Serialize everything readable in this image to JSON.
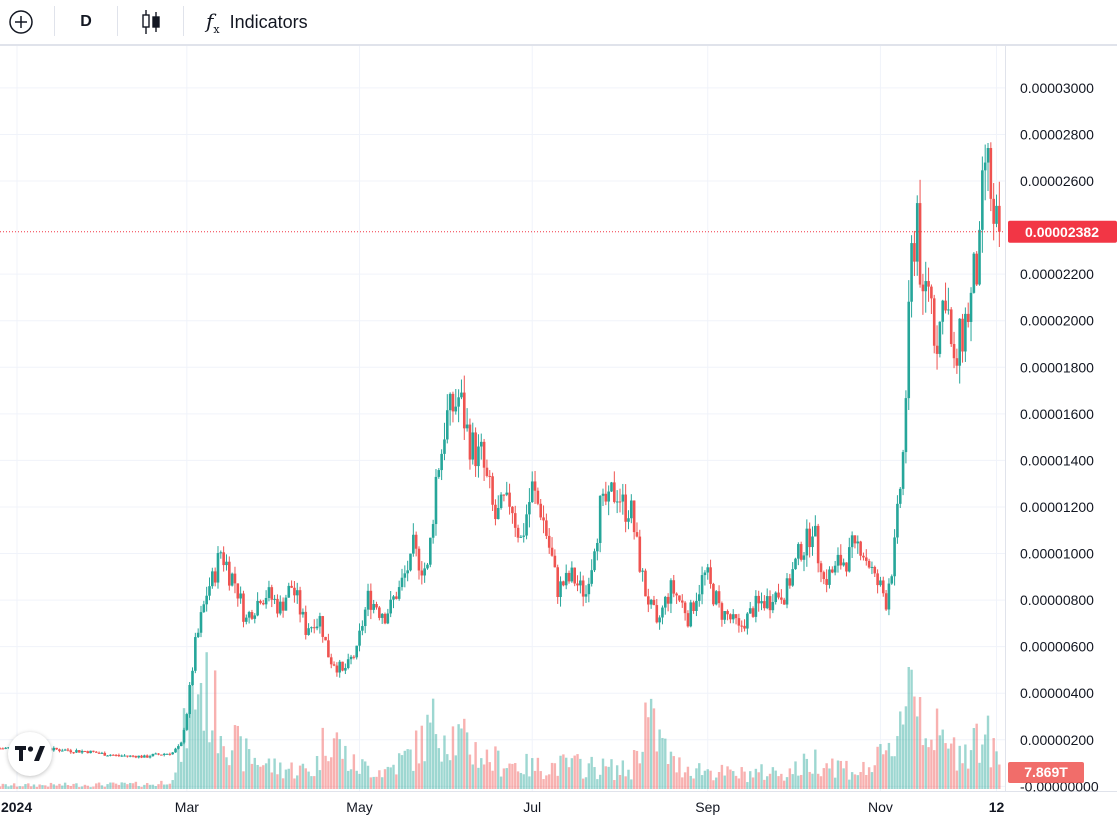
{
  "toolbar": {
    "add_icon": "plus-circle-icon",
    "interval": "D",
    "chart_type_icon": "candles-icon",
    "indicators_icon": "fx-icon",
    "indicators_label": "Indicators"
  },
  "colors": {
    "up": "#26a69a",
    "down": "#ef5350",
    "grid": "#f0f3fa",
    "price_label_bg": "#f23645"
  },
  "chart_data": {
    "type": "candlestick",
    "xlabel": "",
    "ylabel": "",
    "y_ticks": [
      "0.00003000",
      "0.00002800",
      "0.00002600",
      "0.00002200",
      "0.00002000",
      "0.00001800",
      "0.00001600",
      "0.00001400",
      "0.00001200",
      "0.00001000",
      "0.00000800",
      "0.00000600",
      "0.00000400",
      "0.00000200",
      "-0.00000000"
    ],
    "ylim": [
      -2e-07,
      3.18e-05
    ],
    "x_labels": [
      "2024",
      "Mar",
      "May",
      "Jul",
      "Sep",
      "Nov",
      "12"
    ],
    "x_label_dates": [
      "2024-01-01",
      "2024-03-01",
      "2024-05-01",
      "2024-07-01",
      "2024-09-01",
      "2024-11-01",
      "2024-12-12"
    ],
    "xlim": [
      "2023-12-26",
      "2024-12-15"
    ],
    "last_price": 2.382e-05,
    "last_price_label": "0.00002382",
    "volume_label": "7.869T",
    "grid": true,
    "price_points": [
      [
        "2023-12-26",
        1.63e-06
      ],
      [
        "2024-01-05",
        1.68e-06
      ],
      [
        "2024-01-15",
        1.58e-06
      ],
      [
        "2024-01-25",
        1.51e-06
      ],
      [
        "2024-02-05",
        1.33e-06
      ],
      [
        "2024-02-15",
        1.28e-06
      ],
      [
        "2024-02-25",
        1.45e-06
      ],
      [
        "2024-02-28",
        1.8e-06
      ],
      [
        "2024-03-01",
        3.2e-06
      ],
      [
        "2024-03-04",
        6e-06
      ],
      [
        "2024-03-08",
        8.3e-06
      ],
      [
        "2024-03-13",
        1.01e-05
      ],
      [
        "2024-03-18",
        8.8e-06
      ],
      [
        "2024-03-22",
        7.2e-06
      ],
      [
        "2024-03-28",
        8.3e-06
      ],
      [
        "2024-04-03",
        7.8e-06
      ],
      [
        "2024-04-07",
        8.6e-06
      ],
      [
        "2024-04-12",
        6.8e-06
      ],
      [
        "2024-04-17",
        7.2e-06
      ],
      [
        "2024-04-20",
        5.6e-06
      ],
      [
        "2024-04-25",
        4.9e-06
      ],
      [
        "2024-04-30",
        5.8e-06
      ],
      [
        "2024-05-04",
        8.1e-06
      ],
      [
        "2024-05-10",
        7.4e-06
      ],
      [
        "2024-05-15",
        8.4e-06
      ],
      [
        "2024-05-20",
        1.01e-05
      ],
      [
        "2024-05-25",
        9.2e-06
      ],
      [
        "2024-05-28",
        1.32e-05
      ],
      [
        "2024-06-01",
        1.58e-05
      ],
      [
        "2024-06-05",
        1.67e-05
      ],
      [
        "2024-06-08",
        1.52e-05
      ],
      [
        "2024-06-13",
        1.41e-05
      ],
      [
        "2024-06-18",
        1.15e-05
      ],
      [
        "2024-06-23",
        1.24e-05
      ],
      [
        "2024-06-27",
        1.06e-05
      ],
      [
        "2024-07-01",
        1.28e-05
      ],
      [
        "2024-07-05",
        1.14e-05
      ],
      [
        "2024-07-10",
        8.6e-06
      ],
      [
        "2024-07-15",
        8.9e-06
      ],
      [
        "2024-07-20",
        8.3e-06
      ],
      [
        "2024-07-25",
        1.19e-05
      ],
      [
        "2024-07-31",
        1.27e-05
      ],
      [
        "2024-08-05",
        1.17e-05
      ],
      [
        "2024-08-10",
        8.4e-06
      ],
      [
        "2024-08-14",
        6.9e-06
      ],
      [
        "2024-08-19",
        8.6e-06
      ],
      [
        "2024-08-25",
        7.4e-06
      ],
      [
        "2024-08-31",
        9.1e-06
      ],
      [
        "2024-09-05",
        7.7e-06
      ],
      [
        "2024-09-12",
        6.8e-06
      ],
      [
        "2024-09-20",
        7.9e-06
      ],
      [
        "2024-09-28",
        8.4e-06
      ],
      [
        "2024-10-03",
        9.8e-06
      ],
      [
        "2024-10-08",
        1.13e-05
      ],
      [
        "2024-10-12",
        8.8e-06
      ],
      [
        "2024-10-18",
        9.6e-06
      ],
      [
        "2024-10-25",
        1.04e-05
      ],
      [
        "2024-10-30",
        8.9e-06
      ],
      [
        "2024-11-03",
        8.1e-06
      ],
      [
        "2024-11-06",
        1.02e-05
      ],
      [
        "2024-11-09",
        1.43e-05
      ],
      [
        "2024-11-12",
        2.26e-05
      ],
      [
        "2024-11-14",
        2.5e-05
      ],
      [
        "2024-11-16",
        2.05e-05
      ],
      [
        "2024-11-18",
        2.18e-05
      ],
      [
        "2024-11-21",
        1.9e-05
      ],
      [
        "2024-11-24",
        2.15e-05
      ],
      [
        "2024-11-27",
        1.75e-05
      ],
      [
        "2024-11-30",
        1.96e-05
      ],
      [
        "2024-12-03",
        2.1e-05
      ],
      [
        "2024-12-06",
        2.28e-05
      ],
      [
        "2024-12-08",
        2.68e-05
      ],
      [
        "2024-12-10",
        2.55e-05
      ],
      [
        "2024-12-11",
        2.36e-05
      ],
      [
        "2024-12-13",
        2.382e-05
      ]
    ],
    "volume_points": [
      [
        "2023-12-26",
        0.03
      ],
      [
        "2024-02-20",
        0.04
      ],
      [
        "2024-02-26",
        0.12
      ],
      [
        "2024-03-01",
        0.55
      ],
      [
        "2024-03-05",
        0.9
      ],
      [
        "2024-03-12",
        0.6
      ],
      [
        "2024-03-20",
        0.3
      ],
      [
        "2024-04-01",
        0.18
      ],
      [
        "2024-04-15",
        0.15
      ],
      [
        "2024-04-20",
        0.5
      ],
      [
        "2024-04-28",
        0.2
      ],
      [
        "2024-05-10",
        0.15
      ],
      [
        "2024-05-20",
        0.3
      ],
      [
        "2024-05-28",
        0.55
      ],
      [
        "2024-06-03",
        0.45
      ],
      [
        "2024-06-15",
        0.25
      ],
      [
        "2024-07-01",
        0.18
      ],
      [
        "2024-07-15",
        0.2
      ],
      [
        "2024-08-05",
        0.15
      ],
      [
        "2024-08-10",
        0.6
      ],
      [
        "2024-08-20",
        0.2
      ],
      [
        "2024-09-10",
        0.12
      ],
      [
        "2024-10-01",
        0.15
      ],
      [
        "2024-10-10",
        0.25
      ],
      [
        "2024-10-25",
        0.14
      ],
      [
        "2024-11-05",
        0.3
      ],
      [
        "2024-11-10",
        0.85
      ],
      [
        "2024-11-12",
        1.0
      ],
      [
        "2024-11-16",
        0.6
      ],
      [
        "2024-11-25",
        0.3
      ],
      [
        "2024-12-08",
        0.45
      ],
      [
        "2024-12-13",
        0.2
      ]
    ]
  }
}
